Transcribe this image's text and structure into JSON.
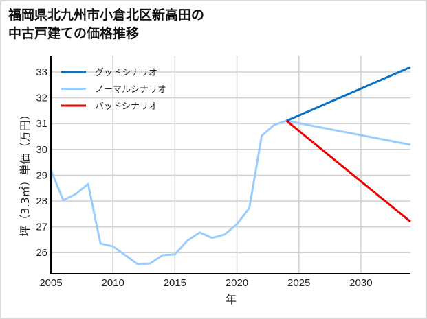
{
  "title": {
    "line1": "福岡県北九州市小倉北区新高田の",
    "line2": "中古戸建ての価格推移"
  },
  "axes": {
    "xlabel": "年",
    "ylabel": "坪（3.3㎡）単価（万円）"
  },
  "colors": {
    "good": "#0a72c4",
    "normal": "#99ccff",
    "bad": "#ee0000",
    "grid": "#d0d0d0",
    "axis": "#000000",
    "frame": "#d9d9d9"
  },
  "chart_data": {
    "type": "line",
    "title": "福岡県北九州市小倉北区新高田の中古戸建ての価格推移",
    "xlabel": "年",
    "ylabel": "坪（3.3㎡）単価（万円）",
    "xlim": [
      2005,
      2034
    ],
    "ylim": [
      25.2,
      33.6
    ],
    "xticks": [
      2005,
      2010,
      2015,
      2020,
      2025,
      2030
    ],
    "yticks": [
      26,
      27,
      28,
      29,
      30,
      31,
      32,
      33
    ],
    "grid": true,
    "legend_position": "upper left",
    "series": [
      {
        "name": "グッドシナリオ",
        "key": "good",
        "x": [
          2024,
          2034
        ],
        "values": [
          31.11,
          33.19
        ]
      },
      {
        "name": "ノーマルシナリオ",
        "key": "normal",
        "x": [
          2005,
          2006,
          2007,
          2008,
          2009,
          2010,
          2011,
          2012,
          2013,
          2014,
          2015,
          2016,
          2017,
          2018,
          2019,
          2020,
          2021,
          2022,
          2023,
          2024,
          2034
        ],
        "values": [
          29.2,
          28.03,
          28.27,
          28.66,
          26.35,
          26.24,
          25.9,
          25.55,
          25.58,
          25.9,
          25.93,
          26.46,
          26.78,
          26.57,
          26.7,
          27.1,
          27.73,
          30.53,
          30.95,
          31.11,
          30.18
        ]
      },
      {
        "name": "バッドシナリオ",
        "key": "bad",
        "x": [
          2024,
          2034
        ],
        "values": [
          31.11,
          27.2
        ]
      }
    ]
  }
}
